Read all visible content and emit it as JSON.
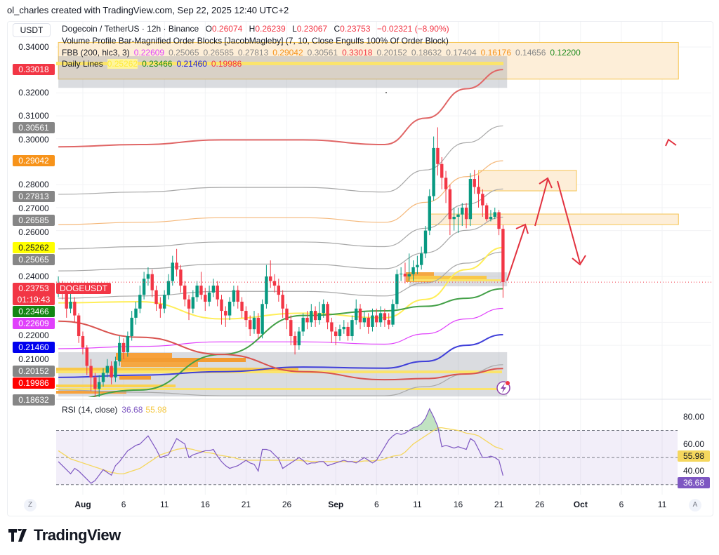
{
  "credit": "ol_charles created with TradingView.com, Sep 22, 2025 12:40 UTC+2",
  "currency": "USDT",
  "legend": {
    "symbol": "Dogecoin / TetherUS · 12h · Binance",
    "o_label": "O",
    "o": "0.26074",
    "h_label": "H",
    "h": "0.26239",
    "l_label": "L",
    "l": "0.23067",
    "c_label": "C",
    "c": "0.23753",
    "change": "−0.02321 (−8.90%)",
    "vp_title": "Volume Profile Bar-Magnified Order Blocks [JacobMagleby] (7, 10, Close Engulfs 100% Of Order Block)",
    "fbb_title": "FBB (200, hlc3, 3)",
    "fbb_values": [
      {
        "v": "0.22609",
        "color": "#e040fb"
      },
      {
        "v": "0.25065",
        "color": "#888888"
      },
      {
        "v": "0.26585",
        "color": "#888888"
      },
      {
        "v": "0.27813",
        "color": "#888888"
      },
      {
        "v": "0.29042",
        "color": "#f7931a"
      },
      {
        "v": "0.30561",
        "color": "#888888"
      },
      {
        "v": "0.33018",
        "color": "#f23645"
      },
      {
        "v": "0.20152",
        "color": "#888888"
      },
      {
        "v": "0.18632",
        "color": "#888888"
      },
      {
        "v": "0.17404",
        "color": "#888888"
      },
      {
        "v": "0.16176",
        "color": "#f7931a"
      },
      {
        "v": "0.14656",
        "color": "#888888"
      },
      {
        "v": "0.12200",
        "color": "#1b8a1b"
      }
    ],
    "daily_title": "Daily Lines",
    "daily_values": [
      {
        "v": "0.25262",
        "color": "#ffeb3b"
      },
      {
        "v": "0.23466",
        "color": "#1b8a1b"
      },
      {
        "v": "0.21460",
        "color": "#2424d6"
      },
      {
        "v": "0.19986",
        "color": "#f23645"
      }
    ]
  },
  "price_axis": [
    "0.34000",
    "0.32000",
    "0.31000",
    "0.30000",
    "0.28000",
    "0.27000",
    "0.26000",
    "0.24000",
    "0.22000",
    "0.21000"
  ],
  "price_tags": [
    {
      "v": "0.33018",
      "bg": "#f23645",
      "fg": "#ffffff"
    },
    {
      "v": "0.30561",
      "bg": "#868686",
      "fg": "#ffffff"
    },
    {
      "v": "0.29042",
      "bg": "#f7931a",
      "fg": "#ffffff"
    },
    {
      "v": "0.27813",
      "bg": "#868686",
      "fg": "#ffffff"
    },
    {
      "v": "0.26585",
      "bg": "#868686",
      "fg": "#ffffff"
    },
    {
      "v": "0.25262",
      "bg": "#ffff00",
      "fg": "#131722"
    },
    {
      "v": "0.25065",
      "bg": "#868686",
      "fg": "#ffffff"
    },
    {
      "v": "0.23466",
      "bg": "#138613",
      "fg": "#ffffff"
    },
    {
      "v": "0.22609",
      "bg": "#e040fb",
      "fg": "#ffffff"
    },
    {
      "v": "0.21460",
      "bg": "#0000ee",
      "fg": "#ffffff"
    },
    {
      "v": "0.20152",
      "bg": "#868686",
      "fg": "#ffffff"
    },
    {
      "v": "0.19986",
      "bg": "#ff0000",
      "fg": "#ffffff"
    },
    {
      "v": "0.18632",
      "bg": "#868686",
      "fg": "#ffffff"
    }
  ],
  "last_price": {
    "v": "0.23753",
    "countdown": "01:19:43",
    "symbol": "DOGEUSDT",
    "color": "#f23645"
  },
  "time_axis": [
    {
      "label": "Aug",
      "date": "2025-08-01",
      "bold": true
    },
    {
      "label": "6",
      "date": "2025-08-06"
    },
    {
      "label": "11",
      "date": "2025-08-11"
    },
    {
      "label": "16",
      "date": "2025-08-16"
    },
    {
      "label": "21",
      "date": "2025-08-21"
    },
    {
      "label": "26",
      "date": "2025-08-26"
    },
    {
      "label": "Sep",
      "date": "2025-09-01",
      "bold": true
    },
    {
      "label": "6",
      "date": "2025-09-06"
    },
    {
      "label": "11",
      "date": "2025-09-11"
    },
    {
      "label": "16",
      "date": "2025-09-16"
    },
    {
      "label": "21",
      "date": "2025-09-21"
    },
    {
      "label": "26",
      "date": "2025-09-26"
    },
    {
      "label": "Oct",
      "date": "2025-10-01",
      "bold": true
    },
    {
      "label": "6",
      "date": "2025-10-06"
    },
    {
      "label": "11",
      "date": "2025-10-11"
    }
  ],
  "time_axis_buttons": {
    "left": "Z",
    "right": "A"
  },
  "rsi": {
    "title": "RSI (14, close)",
    "value": "36.68",
    "ma_value": "55.98",
    "axis": [
      "80.00",
      "60.00",
      "40.00"
    ],
    "colors": {
      "rsi": "#7e57c2",
      "ma": "#f5d75e"
    }
  },
  "brand": "TradingView",
  "colors": {
    "up": "#089981",
    "down": "#f23645"
  },
  "chart_data": {
    "type": "candlestick",
    "interval": "12h",
    "ylim": [
      0.1877,
      0.3445
    ],
    "candles_ohlc": [
      [
        0.234,
        0.24,
        0.231,
        0.236
      ],
      [
        0.236,
        0.238,
        0.23,
        0.233
      ],
      [
        0.233,
        0.235,
        0.222,
        0.226
      ],
      [
        0.226,
        0.233,
        0.224,
        0.229
      ],
      [
        0.229,
        0.231,
        0.22,
        0.223
      ],
      [
        0.223,
        0.224,
        0.211,
        0.214
      ],
      [
        0.214,
        0.216,
        0.206,
        0.209
      ],
      [
        0.209,
        0.21,
        0.197,
        0.201
      ],
      [
        0.201,
        0.204,
        0.19,
        0.196
      ],
      [
        0.196,
        0.198,
        0.187,
        0.191
      ],
      [
        0.191,
        0.197,
        0.186,
        0.194
      ],
      [
        0.194,
        0.2,
        0.192,
        0.198
      ],
      [
        0.198,
        0.204,
        0.196,
        0.201
      ],
      [
        0.201,
        0.203,
        0.193,
        0.196
      ],
      [
        0.196,
        0.205,
        0.194,
        0.203
      ],
      [
        0.203,
        0.214,
        0.201,
        0.211
      ],
      [
        0.211,
        0.213,
        0.204,
        0.207
      ],
      [
        0.207,
        0.216,
        0.205,
        0.214
      ],
      [
        0.214,
        0.225,
        0.212,
        0.222
      ],
      [
        0.222,
        0.229,
        0.219,
        0.226
      ],
      [
        0.226,
        0.236,
        0.224,
        0.232
      ],
      [
        0.232,
        0.242,
        0.23,
        0.239
      ],
      [
        0.239,
        0.244,
        0.236,
        0.241
      ],
      [
        0.241,
        0.243,
        0.231,
        0.234
      ],
      [
        0.234,
        0.236,
        0.225,
        0.228
      ],
      [
        0.228,
        0.231,
        0.222,
        0.226
      ],
      [
        0.226,
        0.234,
        0.224,
        0.232
      ],
      [
        0.232,
        0.241,
        0.23,
        0.238
      ],
      [
        0.238,
        0.249,
        0.236,
        0.246
      ],
      [
        0.246,
        0.252,
        0.24,
        0.243
      ],
      [
        0.243,
        0.245,
        0.233,
        0.236
      ],
      [
        0.236,
        0.238,
        0.227,
        0.23
      ],
      [
        0.23,
        0.232,
        0.221,
        0.226
      ],
      [
        0.226,
        0.234,
        0.224,
        0.231
      ],
      [
        0.231,
        0.238,
        0.229,
        0.236
      ],
      [
        0.236,
        0.242,
        0.23,
        0.232
      ],
      [
        0.232,
        0.235,
        0.225,
        0.229
      ],
      [
        0.229,
        0.236,
        0.227,
        0.233
      ],
      [
        0.233,
        0.239,
        0.231,
        0.236
      ],
      [
        0.236,
        0.238,
        0.227,
        0.23
      ],
      [
        0.23,
        0.232,
        0.219,
        0.225
      ],
      [
        0.225,
        0.227,
        0.218,
        0.223
      ],
      [
        0.223,
        0.231,
        0.221,
        0.229
      ],
      [
        0.229,
        0.236,
        0.227,
        0.234
      ],
      [
        0.234,
        0.236,
        0.226,
        0.229
      ],
      [
        0.229,
        0.231,
        0.222,
        0.225
      ],
      [
        0.225,
        0.227,
        0.218,
        0.221
      ],
      [
        0.221,
        0.223,
        0.214,
        0.217
      ],
      [
        0.217,
        0.225,
        0.215,
        0.222
      ],
      [
        0.222,
        0.224,
        0.213,
        0.215
      ],
      [
        0.215,
        0.23,
        0.213,
        0.228
      ],
      [
        0.228,
        0.245,
        0.226,
        0.24
      ],
      [
        0.24,
        0.247,
        0.235,
        0.238
      ],
      [
        0.238,
        0.241,
        0.233,
        0.236
      ],
      [
        0.236,
        0.239,
        0.229,
        0.232
      ],
      [
        0.232,
        0.234,
        0.222,
        0.226
      ],
      [
        0.226,
        0.228,
        0.217,
        0.221
      ],
      [
        0.221,
        0.223,
        0.21,
        0.214
      ],
      [
        0.214,
        0.216,
        0.206,
        0.21
      ],
      [
        0.21,
        0.218,
        0.208,
        0.216
      ],
      [
        0.216,
        0.224,
        0.214,
        0.222
      ],
      [
        0.222,
        0.225,
        0.217,
        0.22
      ],
      [
        0.22,
        0.228,
        0.218,
        0.225
      ],
      [
        0.225,
        0.227,
        0.218,
        0.221
      ],
      [
        0.221,
        0.229,
        0.219,
        0.224
      ],
      [
        0.224,
        0.23,
        0.222,
        0.228
      ],
      [
        0.228,
        0.229,
        0.217,
        0.22
      ],
      [
        0.22,
        0.222,
        0.211,
        0.216
      ],
      [
        0.216,
        0.218,
        0.21,
        0.214
      ],
      [
        0.214,
        0.219,
        0.212,
        0.217
      ],
      [
        0.217,
        0.221,
        0.215,
        0.218
      ],
      [
        0.218,
        0.22,
        0.212,
        0.214
      ],
      [
        0.214,
        0.223,
        0.212,
        0.221
      ],
      [
        0.221,
        0.23,
        0.219,
        0.226
      ],
      [
        0.226,
        0.228,
        0.217,
        0.22
      ],
      [
        0.22,
        0.225,
        0.218,
        0.222
      ],
      [
        0.222,
        0.224,
        0.215,
        0.218
      ],
      [
        0.218,
        0.226,
        0.216,
        0.223
      ],
      [
        0.223,
        0.226,
        0.218,
        0.22
      ],
      [
        0.22,
        0.227,
        0.218,
        0.224
      ],
      [
        0.224,
        0.226,
        0.218,
        0.221
      ],
      [
        0.221,
        0.224,
        0.217,
        0.219
      ],
      [
        0.219,
        0.23,
        0.218,
        0.228
      ],
      [
        0.228,
        0.243,
        0.226,
        0.241
      ],
      [
        0.241,
        0.244,
        0.238,
        0.2412
      ],
      [
        0.2412,
        0.246,
        0.237,
        0.24
      ],
      [
        0.24,
        0.25,
        0.238,
        0.241
      ],
      [
        0.241,
        0.247,
        0.238,
        0.244
      ],
      [
        0.244,
        0.249,
        0.241,
        0.245
      ],
      [
        0.245,
        0.253,
        0.243,
        0.25
      ],
      [
        0.25,
        0.262,
        0.248,
        0.26
      ],
      [
        0.26,
        0.278,
        0.258,
        0.275
      ],
      [
        0.275,
        0.301,
        0.273,
        0.296
      ],
      [
        0.296,
        0.305,
        0.284,
        0.289
      ],
      [
        0.289,
        0.292,
        0.278,
        0.283
      ],
      [
        0.283,
        0.286,
        0.272,
        0.278
      ],
      [
        0.278,
        0.28,
        0.258,
        0.265
      ],
      [
        0.265,
        0.27,
        0.26,
        0.266
      ],
      [
        0.266,
        0.27,
        0.259,
        0.267
      ],
      [
        0.267,
        0.272,
        0.262,
        0.27
      ],
      [
        0.27,
        0.272,
        0.261,
        0.265
      ],
      [
        0.265,
        0.285,
        0.262,
        0.2825
      ],
      [
        0.2825,
        0.2865,
        0.276,
        0.279
      ],
      [
        0.279,
        0.284,
        0.27,
        0.276
      ],
      [
        0.276,
        0.278,
        0.266,
        0.271
      ],
      [
        0.271,
        0.272,
        0.264,
        0.265
      ],
      [
        0.265,
        0.269,
        0.264,
        0.266
      ],
      [
        0.266,
        0.27,
        0.265,
        0.268
      ],
      [
        0.268,
        0.269,
        0.258,
        0.26074
      ],
      [
        0.26074,
        0.26239,
        0.23067,
        0.23753
      ]
    ],
    "line_sample_dates": [
      "2025-07-29T00:00",
      "2025-08-08T00:00",
      "2025-08-18T00:00",
      "2025-08-28T00:00",
      "2025-09-07T00:00",
      "2025-09-12T00:00",
      "2025-09-17T00:00",
      "2025-09-21T12:00"
    ],
    "fbb_lines": [
      {
        "color": "#e06666",
        "values": [
          0.2965,
          0.2975,
          0.2995,
          0.2995,
          0.2975,
          0.309,
          0.3218,
          0.33018
        ]
      },
      {
        "color": "#a8a8a8",
        "values": [
          0.2758,
          0.2768,
          0.2788,
          0.2788,
          0.2768,
          0.2864,
          0.2983,
          0.30561
        ]
      },
      {
        "color": "#f5b87a",
        "values": [
          0.2626,
          0.2636,
          0.2656,
          0.2656,
          0.2636,
          0.2723,
          0.2835,
          0.29042
        ]
      },
      {
        "color": "#a8a8a8",
        "values": [
          0.252,
          0.253,
          0.255,
          0.255,
          0.253,
          0.261,
          0.2715,
          0.27813
        ]
      },
      {
        "color": "#a8a8a8",
        "values": [
          0.2424,
          0.2434,
          0.2454,
          0.2454,
          0.2434,
          0.2503,
          0.2601,
          0.26585
        ]
      },
      {
        "color": "#a8a8a8",
        "values": [
          0.2305,
          0.2315,
          0.2335,
          0.2335,
          0.2315,
          0.2372,
          0.2458,
          0.25065
        ]
      },
      {
        "color": "#e040fb",
        "values": [
          0.2085,
          0.2095,
          0.2115,
          0.2115,
          0.2105,
          0.215,
          0.2215,
          0.22609
        ]
      },
      {
        "color": "#a8a8a8",
        "values": [
          0.1905,
          0.1895,
          0.188,
          0.188,
          0.188,
          0.192,
          0.1975,
          0.20152
        ]
      },
      {
        "color": "#a8a8a8",
        "values": [
          0.176,
          0.175,
          0.1745,
          0.1745,
          0.1745,
          0.178,
          0.183,
          0.18632
        ]
      }
    ],
    "daily_lines": [
      {
        "color": "#ffee58",
        "values": [
          0.2285,
          0.229,
          0.2215,
          0.224,
          0.222,
          0.23,
          0.243,
          0.25262
        ]
      },
      {
        "color": "#43a047",
        "values": [
          0.186,
          0.1905,
          0.206,
          0.223,
          0.225,
          0.227,
          0.2305,
          0.23466
        ]
      },
      {
        "color": "#3f3fd9",
        "values": [
          0.196,
          0.197,
          0.1985,
          0.2005,
          0.2,
          0.203,
          0.21,
          0.2146
        ]
      },
      {
        "color": "#d9534f",
        "values": [
          0.2205,
          0.2135,
          0.206,
          0.1985,
          0.195,
          0.1955,
          0.1975,
          0.19986
        ]
      }
    ],
    "order_blocks": [
      {
        "from": "2025-07-29T00:00",
        "to": "2025-10-13T00:00",
        "top": 0.342,
        "bottom": 0.326,
        "fill": "#fdeed8",
        "stroke": "#f5c451"
      },
      {
        "from": "2025-07-29T00:00",
        "to": "2025-09-22T00:00",
        "top": 0.336,
        "bottom": 0.3222,
        "fill": "rgba(150,155,165,0.35)",
        "stroke": "none"
      },
      {
        "from": "2025-07-29T00:00",
        "to": "2025-09-22T00:00",
        "top": 0.207,
        "bottom": 0.1877,
        "fill": "rgba(150,155,165,0.35)",
        "stroke": "none"
      },
      {
        "from": "2025-09-10T00:00",
        "to": "2025-09-22T00:00",
        "top": 0.2418,
        "bottom": 0.2357,
        "fill": "rgba(150,155,165,0.35)",
        "stroke": "none"
      },
      {
        "from": "2025-09-18T12:00",
        "to": "2025-09-30T12:00",
        "top": 0.2862,
        "bottom": 0.2773,
        "fill": "#fdeed8",
        "stroke": "#f5c451"
      },
      {
        "from": "2025-09-12T12:00",
        "to": "2025-10-13T00:00",
        "top": 0.2672,
        "bottom": 0.2626,
        "fill": "#fdeed8",
        "stroke": "#f5c451"
      }
    ],
    "rsi_values": [
      47,
      44,
      41,
      38,
      42,
      40,
      37,
      34,
      31,
      33,
      37,
      41,
      39,
      37,
      44,
      47,
      51,
      55,
      57,
      59,
      60,
      63,
      66,
      61,
      56,
      50,
      51,
      52,
      58,
      64,
      62,
      60,
      50,
      52,
      53,
      54,
      55,
      55,
      56,
      51,
      47,
      44,
      42,
      43,
      44,
      46,
      48,
      46,
      45,
      40,
      56,
      56,
      55,
      52,
      49,
      42,
      44,
      46,
      48,
      50,
      48,
      45,
      46,
      46,
      47,
      47,
      44,
      45,
      46,
      47,
      48,
      47,
      47,
      46,
      48,
      50,
      48,
      46,
      48,
      53,
      58,
      63,
      66,
      68,
      67,
      68,
      70,
      72,
      73,
      75,
      79,
      86,
      80,
      73,
      58,
      59,
      58,
      57,
      58,
      57,
      56,
      64,
      62,
      56,
      50,
      50,
      51,
      50,
      48,
      36.68
    ],
    "rsi_ma_values": [
      55,
      53,
      51,
      49,
      48,
      47,
      46,
      45,
      44,
      43,
      42,
      41,
      40,
      39,
      38.5,
      38,
      38,
      39,
      40,
      41,
      42,
      44,
      46,
      48,
      50,
      52,
      53,
      54,
      55,
      56,
      56.5,
      57,
      56.5,
      56,
      55,
      54.5,
      54,
      53.5,
      53,
      52,
      51.5,
      51,
      50.5,
      50,
      49,
      48.5,
      48,
      48,
      48,
      48,
      48,
      48,
      48,
      48,
      48,
      48,
      48,
      48,
      48,
      48,
      47.5,
      47.5,
      47,
      47,
      47,
      47,
      47,
      47,
      47,
      47,
      47,
      47,
      47,
      47,
      47,
      47.5,
      47.5,
      47.5,
      48,
      48,
      49,
      50,
      51,
      51.5,
      52,
      54,
      57,
      60,
      62,
      64,
      66,
      68,
      70,
      72,
      72,
      71.5,
      71,
      70.5,
      70,
      69,
      68,
      67.5,
      67,
      66,
      64,
      62,
      60,
      58,
      57,
      55.98
    ],
    "rsi_levels": [
      70,
      50,
      30
    ],
    "rsi_ylim": [
      23,
      88
    ]
  }
}
